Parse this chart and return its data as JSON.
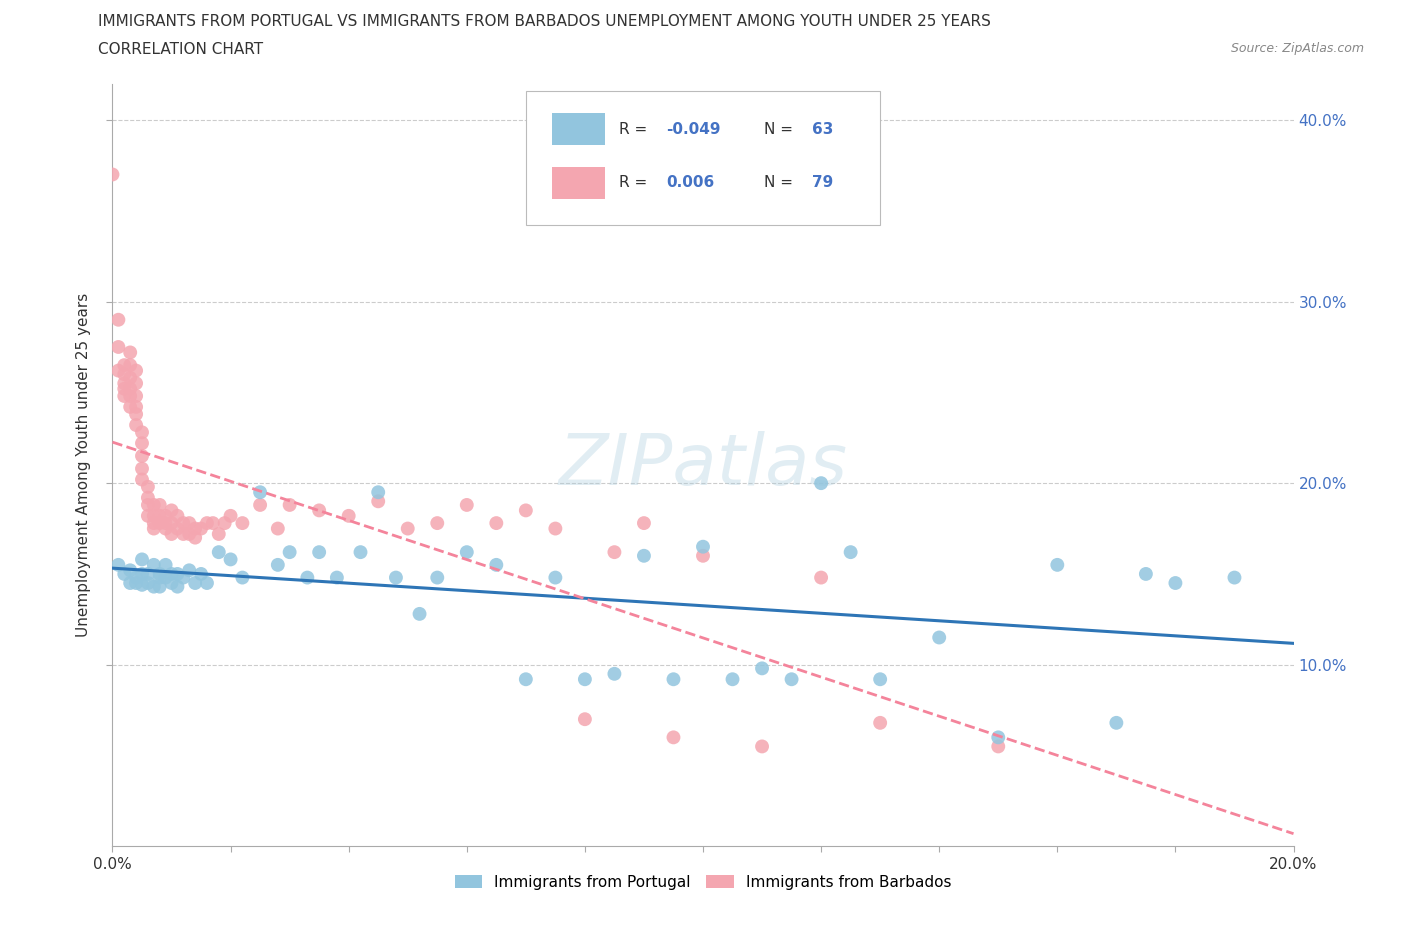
{
  "title_line1": "IMMIGRANTS FROM PORTUGAL VS IMMIGRANTS FROM BARBADOS UNEMPLOYMENT AMONG YOUTH UNDER 25 YEARS",
  "title_line2": "CORRELATION CHART",
  "source": "Source: ZipAtlas.com",
  "ylabel": "Unemployment Among Youth under 25 years",
  "xlim": [
    0.0,
    0.2
  ],
  "ylim": [
    0.0,
    0.42
  ],
  "portugal_R": -0.049,
  "portugal_N": 63,
  "barbados_R": 0.006,
  "barbados_N": 79,
  "portugal_color": "#92C5DE",
  "barbados_color": "#F4A6B0",
  "portugal_line_color": "#2E75B6",
  "barbados_line_color": "#F4849B",
  "watermark": "ZIPatlas",
  "grid_color": "#CCCCCC",
  "portugal_x": [
    0.001,
    0.002,
    0.003,
    0.003,
    0.004,
    0.004,
    0.005,
    0.005,
    0.005,
    0.006,
    0.006,
    0.007,
    0.007,
    0.008,
    0.008,
    0.008,
    0.009,
    0.009,
    0.01,
    0.01,
    0.011,
    0.011,
    0.012,
    0.013,
    0.014,
    0.015,
    0.016,
    0.018,
    0.02,
    0.022,
    0.025,
    0.028,
    0.03,
    0.033,
    0.035,
    0.038,
    0.042,
    0.045,
    0.048,
    0.052,
    0.055,
    0.06,
    0.065,
    0.07,
    0.075,
    0.08,
    0.085,
    0.09,
    0.095,
    0.1,
    0.105,
    0.11,
    0.115,
    0.12,
    0.125,
    0.13,
    0.14,
    0.15,
    0.16,
    0.17,
    0.175,
    0.18,
    0.19
  ],
  "portugal_y": [
    0.155,
    0.15,
    0.145,
    0.152,
    0.148,
    0.145,
    0.158,
    0.144,
    0.15,
    0.15,
    0.145,
    0.155,
    0.143,
    0.15,
    0.148,
    0.143,
    0.155,
    0.148,
    0.15,
    0.145,
    0.15,
    0.143,
    0.148,
    0.152,
    0.145,
    0.15,
    0.145,
    0.162,
    0.158,
    0.148,
    0.195,
    0.155,
    0.162,
    0.148,
    0.162,
    0.148,
    0.162,
    0.195,
    0.148,
    0.128,
    0.148,
    0.162,
    0.155,
    0.092,
    0.148,
    0.092,
    0.095,
    0.16,
    0.092,
    0.165,
    0.092,
    0.098,
    0.092,
    0.2,
    0.162,
    0.092,
    0.115,
    0.06,
    0.155,
    0.068,
    0.15,
    0.145,
    0.148
  ],
  "barbados_x": [
    0.0,
    0.001,
    0.001,
    0.001,
    0.002,
    0.002,
    0.002,
    0.002,
    0.002,
    0.003,
    0.003,
    0.003,
    0.003,
    0.003,
    0.003,
    0.004,
    0.004,
    0.004,
    0.004,
    0.004,
    0.004,
    0.005,
    0.005,
    0.005,
    0.005,
    0.005,
    0.006,
    0.006,
    0.006,
    0.006,
    0.007,
    0.007,
    0.007,
    0.007,
    0.008,
    0.008,
    0.008,
    0.009,
    0.009,
    0.009,
    0.01,
    0.01,
    0.01,
    0.011,
    0.011,
    0.012,
    0.012,
    0.013,
    0.013,
    0.014,
    0.014,
    0.015,
    0.016,
    0.017,
    0.018,
    0.019,
    0.02,
    0.022,
    0.025,
    0.028,
    0.03,
    0.035,
    0.04,
    0.045,
    0.05,
    0.055,
    0.06,
    0.065,
    0.07,
    0.075,
    0.08,
    0.085,
    0.09,
    0.095,
    0.1,
    0.11,
    0.12,
    0.13,
    0.15
  ],
  "barbados_y": [
    0.37,
    0.29,
    0.275,
    0.262,
    0.265,
    0.255,
    0.252,
    0.248,
    0.26,
    0.272,
    0.265,
    0.258,
    0.252,
    0.248,
    0.242,
    0.262,
    0.255,
    0.248,
    0.242,
    0.238,
    0.232,
    0.228,
    0.222,
    0.215,
    0.208,
    0.202,
    0.198,
    0.192,
    0.188,
    0.182,
    0.188,
    0.182,
    0.178,
    0.175,
    0.188,
    0.182,
    0.178,
    0.182,
    0.178,
    0.175,
    0.185,
    0.178,
    0.172,
    0.182,
    0.175,
    0.178,
    0.172,
    0.178,
    0.172,
    0.175,
    0.17,
    0.175,
    0.178,
    0.178,
    0.172,
    0.178,
    0.182,
    0.178,
    0.188,
    0.175,
    0.188,
    0.185,
    0.182,
    0.19,
    0.175,
    0.178,
    0.188,
    0.178,
    0.185,
    0.175,
    0.07,
    0.162,
    0.178,
    0.06,
    0.16,
    0.055,
    0.148,
    0.068,
    0.055
  ]
}
